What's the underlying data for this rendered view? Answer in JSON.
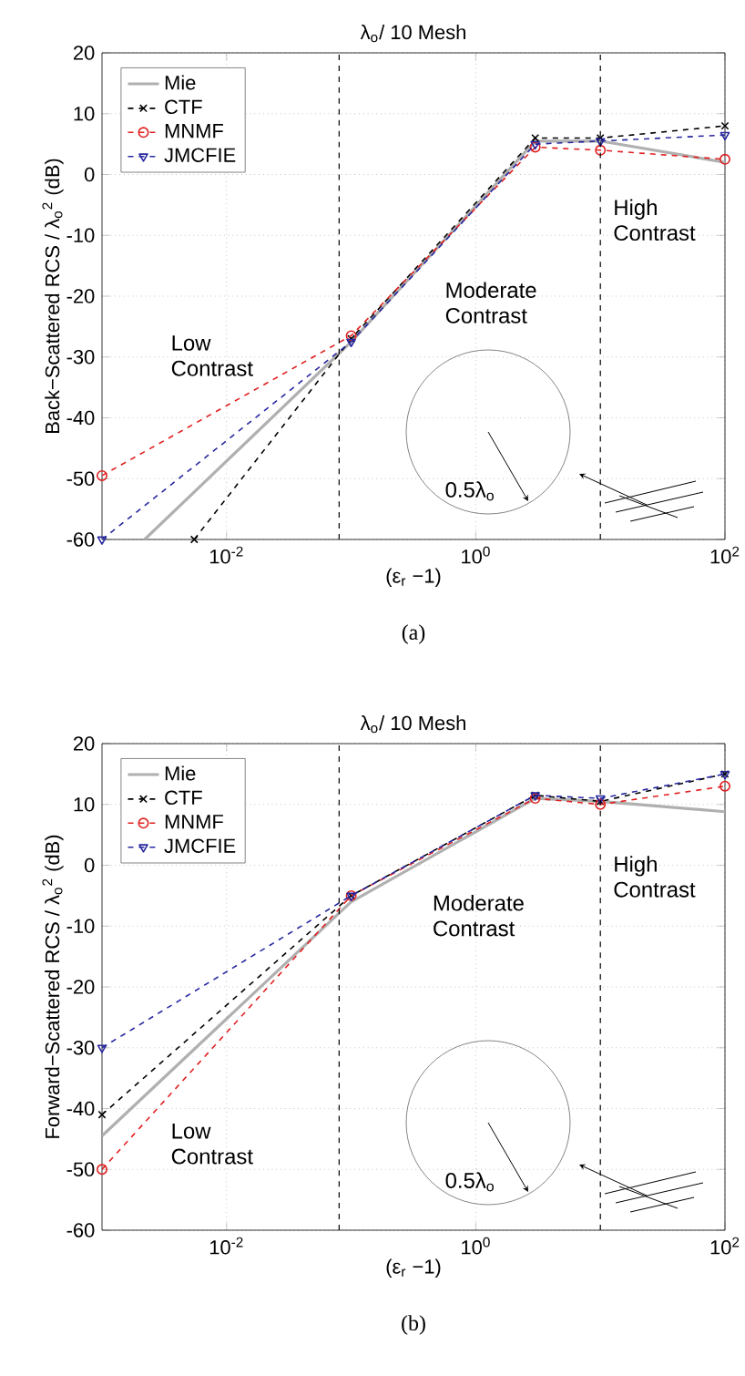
{
  "chart_data": [
    {
      "type": "line",
      "title": "λ$_{o}$/ 10 Mesh",
      "xlabel": "(ε$_{r}$ −1)",
      "ylabel": "Back−Scattered RCS / λ$_{o}$$^{2}$ (dB)",
      "log": "x",
      "grid": true,
      "legend": "top left",
      "xlim": [
        0.001,
        100
      ],
      "xticks": [
        {
          "value": 0.01,
          "label": "10$^{-2}$"
        },
        {
          "value": 1,
          "label": "10$^{0}$"
        },
        {
          "value": 100,
          "label": "10$^{2}$"
        }
      ],
      "ylim": [
        -60,
        20
      ],
      "yticks": [
        -60,
        -50,
        -40,
        -30,
        -20,
        -10,
        0,
        10,
        20
      ],
      "series": [
        {
          "name": "Mie",
          "color": "#b0b0b0",
          "marker": "none",
          "line_style": "solid",
          "x": [
            0.0022,
            0.1,
            3,
            10,
            100
          ],
          "values": [
            -60,
            -27.5,
            5.5,
            5.5,
            2
          ]
        },
        {
          "name": "CTF",
          "color": "#000000",
          "marker": "cross",
          "line_style": "dashed",
          "x": [
            0.0055,
            0.1,
            3,
            10,
            100
          ],
          "values": [
            -60,
            -27,
            6,
            6,
            8
          ]
        },
        {
          "name": "MNMF",
          "color": "#e02020",
          "marker": "circle",
          "line_style": "dashed",
          "x": [
            0.001,
            0.1,
            3,
            10,
            100
          ],
          "values": [
            -49.5,
            -26.5,
            4.5,
            4,
            2.5
          ]
        },
        {
          "name": "JMCFIE",
          "color": "#2828a0",
          "marker": "triangle",
          "line_style": "dashed",
          "x": [
            0.001,
            0.1,
            3,
            10,
            100
          ],
          "values": [
            -60,
            -27.5,
            5,
            5.5,
            6.5
          ]
        }
      ],
      "ref_lines": [
        {
          "axis": "x",
          "value": 0.08,
          "color": "#000000",
          "line_style": "dashed"
        },
        {
          "axis": "x",
          "value": 10,
          "color": "#000000",
          "line_style": "dashed"
        }
      ],
      "annotations": [
        "Low Contrast",
        "Moderate Contrast",
        "High Contrast",
        "0.5λ$_{o}$",
        "(a)"
      ]
    },
    {
      "type": "line",
      "title": "λ$_{o}$/ 10 Mesh",
      "xlabel": "(ε$_{r}$ −1)",
      "ylabel": "Forward−Scattered RCS / λ$_{o}$$^{2}$ (dB)",
      "log": "x",
      "grid": true,
      "legend": "top left",
      "xlim": [
        0.001,
        100
      ],
      "xticks": [
        {
          "value": 0.01,
          "label": "10$^{-2}$"
        },
        {
          "value": 1,
          "label": "10$^{0}$"
        },
        {
          "value": 100,
          "label": "10$^{2}$"
        }
      ],
      "ylim": [
        -60,
        20
      ],
      "yticks": [
        -60,
        -50,
        -40,
        -30,
        -20,
        -10,
        0,
        10,
        20
      ],
      "series": [
        {
          "name": "Mie",
          "color": "#b0b0b0",
          "marker": "none",
          "line_style": "solid",
          "x": [
            0.001,
            0.1,
            3,
            10,
            100
          ],
          "values": [
            -44.5,
            -6,
            11,
            10.5,
            8.8
          ]
        },
        {
          "name": "CTF",
          "color": "#000000",
          "marker": "cross",
          "line_style": "dashed",
          "x": [
            0.001,
            0.1,
            3,
            10,
            100
          ],
          "values": [
            -41,
            -5,
            11.5,
            10.5,
            15
          ]
        },
        {
          "name": "MNMF",
          "color": "#e02020",
          "marker": "circle",
          "line_style": "dashed",
          "x": [
            0.001,
            0.1,
            3,
            10,
            100
          ],
          "values": [
            -50,
            -5,
            11,
            10,
            13
          ]
        },
        {
          "name": "JMCFIE",
          "color": "#2828a0",
          "marker": "triangle",
          "line_style": "dashed",
          "x": [
            0.001,
            0.1,
            3,
            10,
            100
          ],
          "values": [
            -30,
            -5,
            11.5,
            11,
            15
          ]
        }
      ],
      "ref_lines": [
        {
          "axis": "x",
          "value": 0.08,
          "color": "#000000",
          "line_style": "dashed"
        },
        {
          "axis": "x",
          "value": 10,
          "color": "#000000",
          "line_style": "dashed"
        }
      ],
      "annotations": [
        "Low Contrast",
        "Moderate Contrast",
        "High Contrast",
        "0.5λ$_{o}$",
        "(b)"
      ]
    }
  ]
}
